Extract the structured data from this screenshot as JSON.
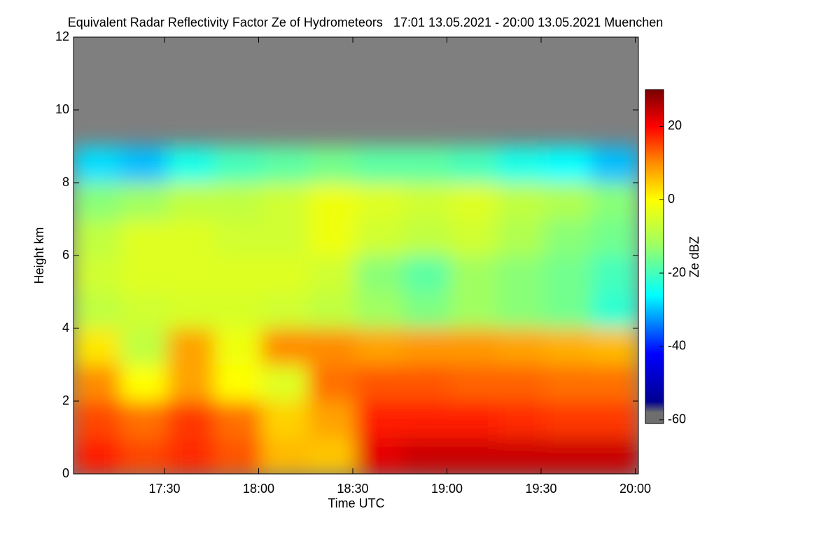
{
  "chart_data": {
    "type": "heatmap",
    "title": "Equivalent Radar Reflectivity Factor Ze of Hydrometeors   17:01 13.05.2021 - 20:00 13.05.2021 Muenchen",
    "xlabel": "Time UTC",
    "ylabel": "Height km",
    "colorbar_label": "Ze dBZ",
    "xlim": [
      1021,
      1201
    ],
    "ylim": [
      0,
      12
    ],
    "xticks": [
      {
        "value": 1050,
        "label": "17:30"
      },
      {
        "value": 1080,
        "label": "18:00"
      },
      {
        "value": 1110,
        "label": "18:30"
      },
      {
        "value": 1140,
        "label": "19:00"
      },
      {
        "value": 1170,
        "label": "19:30"
      },
      {
        "value": 1200,
        "label": "20:00"
      }
    ],
    "yticks": [
      0,
      2,
      4,
      6,
      8,
      10,
      12
    ],
    "clim": [
      -61,
      30
    ],
    "cticks": [
      -60,
      -40,
      -20,
      0,
      20
    ],
    "missing_color": "#7f7f7f",
    "colormap": [
      [
        -61,
        "#6e6e6e"
      ],
      [
        -58,
        "#6e6e6e"
      ],
      [
        -55,
        "#000090"
      ],
      [
        -42,
        "#0000ff"
      ],
      [
        -26,
        "#00ffff"
      ],
      [
        -12,
        "#a0ff60"
      ],
      [
        0,
        "#ffff00"
      ],
      [
        10,
        "#ff8c00"
      ],
      [
        20,
        "#ff0000"
      ],
      [
        30,
        "#7a0000"
      ]
    ],
    "x": [
      1021,
      1036,
      1051,
      1066,
      1081,
      1096,
      1111,
      1126,
      1141,
      1156,
      1171,
      1186,
      1201
    ],
    "y": [
      0,
      1,
      2,
      3,
      4,
      5,
      6,
      7,
      8,
      9,
      10,
      11,
      12
    ],
    "z": [
      [
        18,
        15,
        17,
        14,
        6,
        5,
        22,
        24,
        24,
        24,
        24,
        24
      ],
      [
        15,
        12,
        16,
        12,
        4,
        8,
        18,
        18,
        18,
        17,
        16,
        16
      ],
      [
        10,
        0,
        8,
        0,
        -4,
        12,
        14,
        14,
        13,
        13,
        12,
        12
      ],
      [
        2,
        -8,
        8,
        -2,
        10,
        10,
        8,
        9,
        9,
        8,
        7,
        6
      ],
      [
        -8,
        -6,
        -5,
        -5,
        -6,
        -8,
        -12,
        -15,
        -12,
        -14,
        -16,
        -22
      ],
      [
        -6,
        -4,
        -4,
        -4,
        -4,
        -6,
        -14,
        -18,
        -12,
        -14,
        -16,
        -20
      ],
      [
        -8,
        -4,
        -4,
        -6,
        -6,
        -2,
        -6,
        -8,
        -6,
        -10,
        -14,
        -16
      ],
      [
        -14,
        -12,
        -8,
        -8,
        -6,
        -2,
        -4,
        -6,
        -4,
        -8,
        -10,
        -14
      ],
      [
        -28,
        -30,
        -24,
        -20,
        -18,
        -16,
        -18,
        -18,
        -20,
        -24,
        -26,
        -30
      ],
      [
        null,
        null,
        null,
        null,
        null,
        null,
        null,
        null,
        null,
        null,
        null,
        null
      ],
      [
        null,
        null,
        null,
        null,
        null,
        null,
        null,
        null,
        null,
        null,
        null,
        null
      ],
      [
        null,
        null,
        null,
        null,
        null,
        null,
        null,
        null,
        null,
        null,
        null,
        null
      ]
    ]
  }
}
